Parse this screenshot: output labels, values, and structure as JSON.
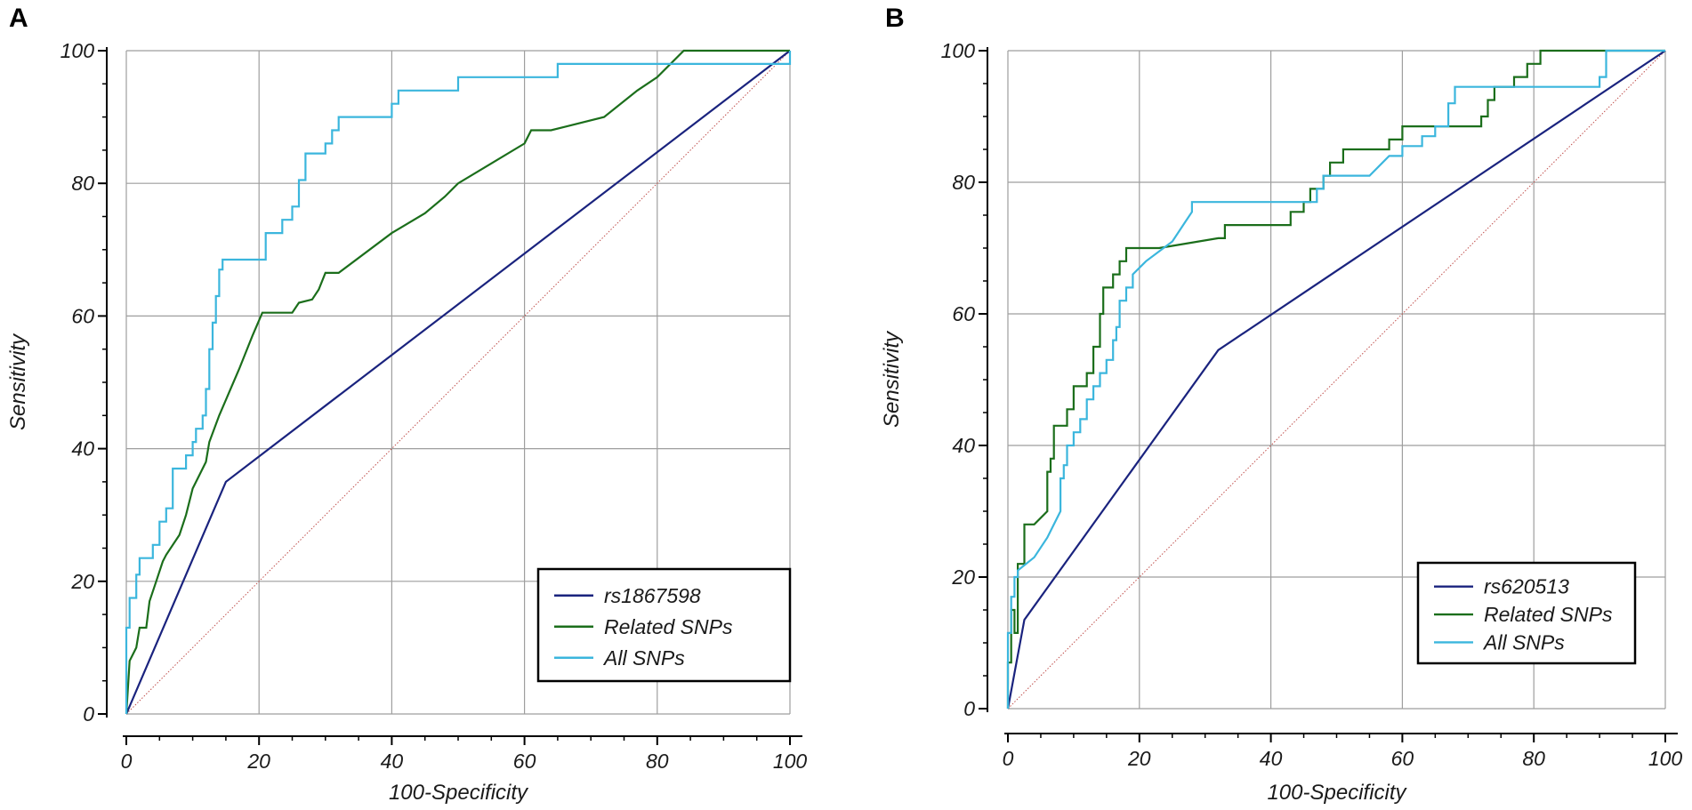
{
  "colors": {
    "rs_line": "#1a237e",
    "related_line": "#1b6e1b",
    "all_line": "#3bb6dd",
    "diagonal": "#c0504d",
    "grid": "#9e9e9e"
  },
  "chart_data": [
    {
      "type": "line",
      "panel_label": "A",
      "xlabel": "100-Specificity",
      "ylabel": "Sensitivity",
      "xlim": [
        0,
        100
      ],
      "ylim": [
        0,
        100
      ],
      "xticks": [
        0,
        20,
        40,
        60,
        80,
        100
      ],
      "yticks": [
        0,
        20,
        40,
        60,
        80,
        100
      ],
      "grid": true,
      "legend_position": "bottom-right",
      "series": [
        {
          "name": "rs1867598",
          "color_key": "rs_line",
          "points": [
            [
              0,
              0
            ],
            [
              15,
              35
            ],
            [
              100,
              100
            ]
          ]
        },
        {
          "name": "Related SNPs",
          "color_key": "related_line",
          "points": [
            [
              0,
              0
            ],
            [
              0.5,
              8
            ],
            [
              1.5,
              10
            ],
            [
              2,
              13
            ],
            [
              3,
              13
            ],
            [
              3.5,
              17
            ],
            [
              4.5,
              20
            ],
            [
              5.5,
              23
            ],
            [
              6,
              24
            ],
            [
              8,
              27
            ],
            [
              9,
              30
            ],
            [
              10,
              34
            ],
            [
              11,
              36
            ],
            [
              12,
              38
            ],
            [
              12.5,
              41
            ],
            [
              14,
              45
            ],
            [
              17,
              52
            ],
            [
              19,
              57
            ],
            [
              20.5,
              60.5
            ],
            [
              25,
              60.5
            ],
            [
              26,
              62
            ],
            [
              28,
              62.5
            ],
            [
              29,
              64
            ],
            [
              30,
              66.5
            ],
            [
              32,
              66.5
            ],
            [
              40,
              72.5
            ],
            [
              45,
              75.5
            ],
            [
              48,
              78
            ],
            [
              50,
              80
            ],
            [
              55,
              83
            ],
            [
              60,
              86
            ],
            [
              61,
              88
            ],
            [
              64,
              88
            ],
            [
              72,
              90
            ],
            [
              77,
              94
            ],
            [
              80,
              96
            ],
            [
              84,
              100
            ],
            [
              100,
              100
            ]
          ]
        },
        {
          "name": "All SNPs",
          "color_key": "all_line",
          "points": [
            [
              0,
              0
            ],
            [
              0,
              13
            ],
            [
              0.5,
              13
            ],
            [
              0.5,
              17.5
            ],
            [
              1.5,
              17.5
            ],
            [
              1.5,
              21
            ],
            [
              2,
              21
            ],
            [
              2,
              23.5
            ],
            [
              4,
              23.5
            ],
            [
              4,
              25.5
            ],
            [
              5,
              25.5
            ],
            [
              5,
              29
            ],
            [
              6,
              29
            ],
            [
              6,
              31
            ],
            [
              7,
              31
            ],
            [
              7,
              37
            ],
            [
              9,
              37
            ],
            [
              9,
              39
            ],
            [
              10,
              39
            ],
            [
              10,
              41
            ],
            [
              10.5,
              41
            ],
            [
              10.5,
              43
            ],
            [
              11.5,
              43
            ],
            [
              11.5,
              45
            ],
            [
              12,
              45
            ],
            [
              12,
              49
            ],
            [
              12.5,
              49
            ],
            [
              12.5,
              55
            ],
            [
              13,
              55
            ],
            [
              13,
              59
            ],
            [
              13.5,
              59
            ],
            [
              13.5,
              63
            ],
            [
              14,
              63
            ],
            [
              14,
              67
            ],
            [
              14.5,
              67
            ],
            [
              14.5,
              68.5
            ],
            [
              21,
              68.5
            ],
            [
              21,
              72.5
            ],
            [
              23.5,
              72.5
            ],
            [
              23.5,
              74.5
            ],
            [
              25,
              74.5
            ],
            [
              25,
              76.5
            ],
            [
              26,
              76.5
            ],
            [
              26,
              80.5
            ],
            [
              27,
              80.5
            ],
            [
              27,
              84.5
            ],
            [
              30,
              84.5
            ],
            [
              30,
              86
            ],
            [
              31,
              86
            ],
            [
              31,
              88
            ],
            [
              32,
              88
            ],
            [
              32,
              90
            ],
            [
              40,
              90
            ],
            [
              40,
              92
            ],
            [
              41,
              92
            ],
            [
              41,
              94
            ],
            [
              50,
              94
            ],
            [
              50,
              96
            ],
            [
              65,
              96
            ],
            [
              65,
              98
            ],
            [
              100,
              98
            ],
            [
              100,
              100
            ]
          ]
        }
      ]
    },
    {
      "type": "line",
      "panel_label": "B",
      "xlabel": "100-Specificity",
      "ylabel": "Sensitivity",
      "xlim": [
        0,
        100
      ],
      "ylim": [
        0,
        100
      ],
      "xticks": [
        0,
        20,
        40,
        60,
        80,
        100
      ],
      "yticks": [
        0,
        20,
        40,
        60,
        80,
        100
      ],
      "grid": true,
      "legend_position": "bottom-right",
      "series": [
        {
          "name": "rs620513",
          "color_key": "rs_line",
          "points": [
            [
              0,
              0
            ],
            [
              2.5,
              13.5
            ],
            [
              32,
              54.5
            ],
            [
              100,
              100
            ]
          ]
        },
        {
          "name": "Related SNPs",
          "color_key": "related_line",
          "points": [
            [
              0,
              0
            ],
            [
              0,
              7
            ],
            [
              0.5,
              7
            ],
            [
              0.5,
              15
            ],
            [
              1,
              15
            ],
            [
              1,
              11.5
            ],
            [
              1.5,
              11.5
            ],
            [
              1.5,
              22
            ],
            [
              2.5,
              22
            ],
            [
              2.5,
              28
            ],
            [
              4,
              28
            ],
            [
              6,
              30
            ],
            [
              6,
              36
            ],
            [
              6.5,
              36
            ],
            [
              6.5,
              38
            ],
            [
              7,
              38
            ],
            [
              7,
              43
            ],
            [
              9,
              43
            ],
            [
              9,
              45.5
            ],
            [
              10,
              45.5
            ],
            [
              10,
              49
            ],
            [
              12,
              49
            ],
            [
              12,
              51
            ],
            [
              13,
              51
            ],
            [
              13,
              55
            ],
            [
              14,
              55
            ],
            [
              14,
              60
            ],
            [
              14.5,
              60
            ],
            [
              14.5,
              64
            ],
            [
              16,
              64
            ],
            [
              16,
              66
            ],
            [
              17,
              66
            ],
            [
              17,
              68
            ],
            [
              18,
              68
            ],
            [
              18,
              70
            ],
            [
              23,
              70
            ],
            [
              32,
              71.5
            ],
            [
              33,
              71.5
            ],
            [
              33,
              73.5
            ],
            [
              43,
              73.5
            ],
            [
              43,
              75.5
            ],
            [
              45,
              75.5
            ],
            [
              45,
              77
            ],
            [
              46,
              77
            ],
            [
              46,
              79
            ],
            [
              48,
              79
            ],
            [
              48,
              81
            ],
            [
              49,
              81
            ],
            [
              49,
              83
            ],
            [
              51,
              83
            ],
            [
              51,
              85
            ],
            [
              58,
              85
            ],
            [
              58,
              86.5
            ],
            [
              60,
              86.5
            ],
            [
              60,
              88.5
            ],
            [
              66,
              88.5
            ],
            [
              72,
              88.5
            ],
            [
              72,
              90
            ],
            [
              73,
              90
            ],
            [
              73,
              92.5
            ],
            [
              74,
              92.5
            ],
            [
              74,
              94.5
            ],
            [
              77,
              94.5
            ],
            [
              77,
              96
            ],
            [
              79,
              96
            ],
            [
              79,
              98
            ],
            [
              81,
              98
            ],
            [
              81,
              100
            ],
            [
              100,
              100
            ]
          ]
        },
        {
          "name": "All SNPs",
          "color_key": "all_line",
          "points": [
            [
              0,
              0
            ],
            [
              0,
              11.5
            ],
            [
              0.5,
              11.5
            ],
            [
              0.5,
              17
            ],
            [
              1,
              17
            ],
            [
              1,
              20
            ],
            [
              1.5,
              20
            ],
            [
              1.5,
              21
            ],
            [
              4,
              23
            ],
            [
              6,
              26
            ],
            [
              7,
              28
            ],
            [
              8,
              30
            ],
            [
              8,
              35
            ],
            [
              8.5,
              35
            ],
            [
              8.5,
              37
            ],
            [
              9,
              37
            ],
            [
              9,
              40
            ],
            [
              10,
              40
            ],
            [
              10,
              42
            ],
            [
              11,
              42
            ],
            [
              11,
              44
            ],
            [
              12,
              44
            ],
            [
              12,
              47
            ],
            [
              13,
              47
            ],
            [
              13,
              49
            ],
            [
              14,
              49
            ],
            [
              14,
              51
            ],
            [
              15,
              51
            ],
            [
              15,
              53
            ],
            [
              16,
              53
            ],
            [
              16,
              56
            ],
            [
              16.5,
              56
            ],
            [
              16.5,
              58
            ],
            [
              17,
              58
            ],
            [
              17,
              62
            ],
            [
              18,
              62
            ],
            [
              18,
              64
            ],
            [
              19,
              64
            ],
            [
              19,
              66
            ],
            [
              21,
              68
            ],
            [
              25,
              71
            ],
            [
              27,
              74
            ],
            [
              28,
              75.5
            ],
            [
              28,
              77
            ],
            [
              47,
              77
            ],
            [
              47,
              79
            ],
            [
              48,
              79
            ],
            [
              48,
              81
            ],
            [
              55,
              81
            ],
            [
              58,
              84
            ],
            [
              60,
              84
            ],
            [
              60,
              85.5
            ],
            [
              63,
              85.5
            ],
            [
              63,
              87
            ],
            [
              65,
              87
            ],
            [
              65,
              88.5
            ],
            [
              67,
              88.5
            ],
            [
              67,
              92
            ],
            [
              68,
              92
            ],
            [
              68,
              94.5
            ],
            [
              90,
              94.5
            ],
            [
              90,
              96
            ],
            [
              91,
              96
            ],
            [
              91,
              100
            ],
            [
              100,
              100
            ]
          ]
        }
      ]
    }
  ]
}
